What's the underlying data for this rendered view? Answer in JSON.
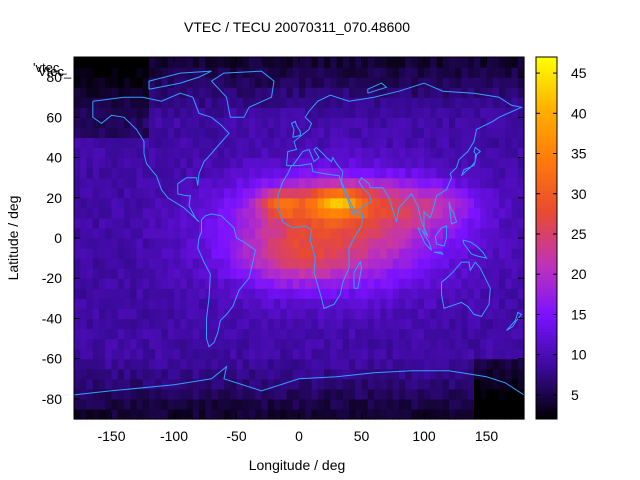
{
  "chart_data": {
    "type": "heatmap",
    "title": "VTEC / TECU 20070311_070.48600",
    "xlabel": "Longitude / deg",
    "ylabel": "Latitude / deg",
    "legend_key": "'vtec_",
    "legend_key_alt": "Vtec_",
    "legend_position": "top-left",
    "xlim": [
      -180,
      180
    ],
    "ylim": [
      -90,
      90
    ],
    "x_ticks": [
      -150,
      -100,
      -50,
      0,
      50,
      100,
      150
    ],
    "y_ticks": [
      -80,
      -60,
      -40,
      -20,
      0,
      20,
      40,
      60,
      80
    ],
    "x_tick_labels": [
      "-150",
      "-100",
      "-50",
      "0",
      "50",
      "100",
      "150"
    ],
    "y_tick_labels": [
      "-80",
      "-60",
      "-40",
      "-20",
      "0",
      "20",
      "40",
      "60",
      "80"
    ],
    "colorbar": {
      "range": [
        2,
        47
      ],
      "ticks": [
        5,
        10,
        15,
        20,
        25,
        30,
        35,
        40,
        45
      ],
      "tick_labels": [
        "5",
        "10",
        "15",
        "20",
        "25",
        "30",
        "35",
        "40",
        "45"
      ]
    },
    "grid": false,
    "peak": {
      "lon": 30,
      "lat": 17,
      "value": 46
    },
    "background_value": 9,
    "colors": {
      "palette": [
        "#000000",
        "#3a0a9a",
        "#7a12ff",
        "#c033b8",
        "#e84a32",
        "#ff7a0a",
        "#ffb000",
        "#ffff00"
      ],
      "coastline": "#33a0ff",
      "axis": "#000000"
    }
  }
}
